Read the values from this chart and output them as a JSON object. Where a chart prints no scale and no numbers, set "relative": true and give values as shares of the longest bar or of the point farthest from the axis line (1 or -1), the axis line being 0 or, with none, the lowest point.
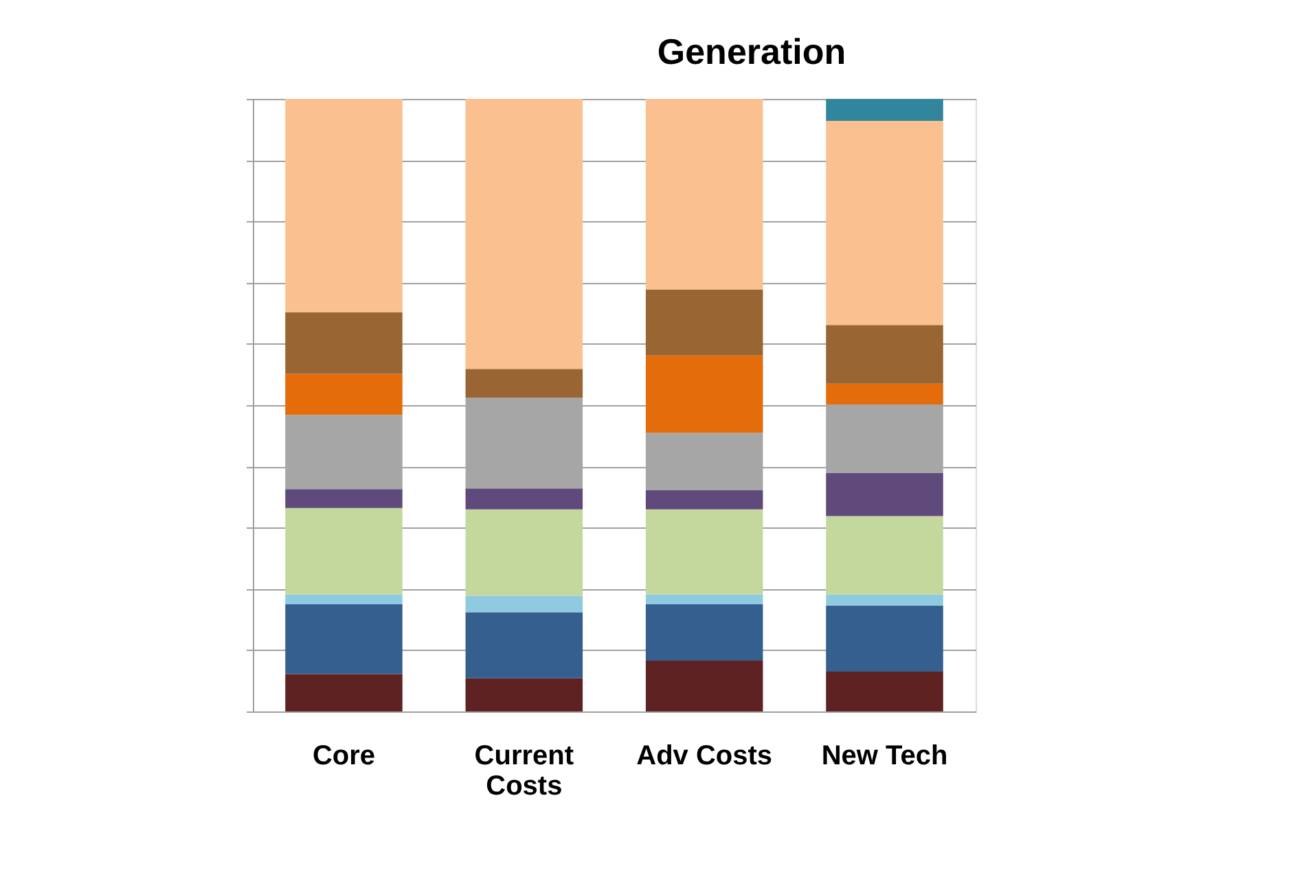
{
  "chart_data": {
    "type": "bar",
    "title": "Generation",
    "relative": true,
    "stacked": true,
    "grid": "y",
    "legend": false,
    "categories": [
      "Core",
      "Current Costs",
      "Adv Costs",
      "New Tech"
    ],
    "series": [
      {
        "color": "#5f2222",
        "values": [
          0.061,
          0.054,
          0.083,
          0.065
        ]
      },
      {
        "color": "#355f8f",
        "values": [
          0.114,
          0.108,
          0.092,
          0.108
        ]
      },
      {
        "color": "#8ecbe0",
        "values": [
          0.016,
          0.027,
          0.016,
          0.018
        ]
      },
      {
        "color": "#c4d89e",
        "values": [
          0.141,
          0.141,
          0.139,
          0.128
        ]
      },
      {
        "color": "#604a7b",
        "values": [
          0.031,
          0.034,
          0.031,
          0.07
        ]
      },
      {
        "color": "#a6a6a6",
        "values": [
          0.121,
          0.148,
          0.094,
          0.112
        ]
      },
      {
        "color": "#e46c0a",
        "values": [
          0.067,
          0,
          0.126,
          0.034
        ]
      },
      {
        "color": "#996633",
        "values": [
          0.101,
          0.047,
          0.108,
          0.096
        ]
      },
      {
        "color": "#fac090",
        "values": [
          0.348,
          0.441,
          0.311,
          0.333
        ]
      },
      {
        "color": "#31859c",
        "values": [
          0,
          0,
          0,
          0.036
        ]
      }
    ]
  }
}
